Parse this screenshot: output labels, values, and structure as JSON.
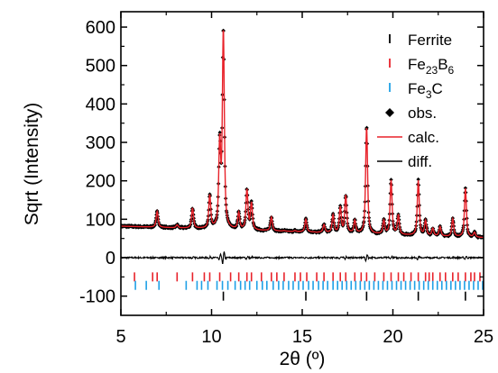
{
  "chart_data": {
    "type": "line",
    "xlabel": "2θ (º)",
    "ylabel": "Sqrt (Intensity)",
    "xlim": [
      5,
      25
    ],
    "ylim": [
      -150,
      640
    ],
    "x_ticks": [
      5,
      10,
      15,
      20,
      25
    ],
    "y_ticks": [
      -100,
      0,
      100,
      200,
      300,
      400,
      500,
      600
    ],
    "x_tick_labels": [
      "5",
      "10",
      "15",
      "20",
      "25"
    ],
    "y_tick_labels": [
      "-100",
      "0",
      "100",
      "200",
      "300",
      "400",
      "500",
      "600"
    ],
    "grid": false,
    "legend_position": "top-right",
    "background": 82,
    "background_end": 52,
    "peaks": [
      {
        "x": 7.0,
        "y": 120
      },
      {
        "x": 8.1,
        "y": 85
      },
      {
        "x": 8.95,
        "y": 128
      },
      {
        "x": 9.9,
        "y": 160
      },
      {
        "x": 10.45,
        "y": 290
      },
      {
        "x": 10.65,
        "y": 585
      },
      {
        "x": 11.5,
        "y": 115
      },
      {
        "x": 11.95,
        "y": 175
      },
      {
        "x": 12.2,
        "y": 140
      },
      {
        "x": 13.3,
        "y": 105
      },
      {
        "x": 14.0,
        "y": 70
      },
      {
        "x": 14.6,
        "y": 70
      },
      {
        "x": 15.2,
        "y": 100
      },
      {
        "x": 15.8,
        "y": 65
      },
      {
        "x": 16.2,
        "y": 85
      },
      {
        "x": 16.7,
        "y": 110
      },
      {
        "x": 17.1,
        "y": 130
      },
      {
        "x": 17.4,
        "y": 160
      },
      {
        "x": 17.9,
        "y": 95
      },
      {
        "x": 18.55,
        "y": 340
      },
      {
        "x": 19.5,
        "y": 95
      },
      {
        "x": 19.9,
        "y": 200
      },
      {
        "x": 20.3,
        "y": 110
      },
      {
        "x": 21.4,
        "y": 200
      },
      {
        "x": 21.8,
        "y": 95
      },
      {
        "x": 22.2,
        "y": 75
      },
      {
        "x": 22.6,
        "y": 80
      },
      {
        "x": 23.3,
        "y": 100
      },
      {
        "x": 24.0,
        "y": 180
      },
      {
        "x": 24.5,
        "y": 65
      }
    ],
    "reflections": {
      "ferrite": {
        "y": -100,
        "color": "#000000",
        "x": [
          10.65,
          15.2,
          18.55,
          21.4,
          24.0
        ]
      },
      "fe23b6": {
        "y": -50,
        "color": "#e8222a",
        "x": [
          5.75,
          6.75,
          7.0,
          8.1,
          8.95,
          9.6,
          9.9,
          10.45,
          11.05,
          11.5,
          11.95,
          12.2,
          12.75,
          13.3,
          13.6,
          14.0,
          14.6,
          14.9,
          15.25,
          15.8,
          16.2,
          16.7,
          17.1,
          17.4,
          17.9,
          18.25,
          18.55,
          19.0,
          19.5,
          19.9,
          20.3,
          20.6,
          21.0,
          21.4,
          21.8,
          22.0,
          22.2,
          22.6,
          22.9,
          23.3,
          23.6,
          24.0,
          24.3,
          24.5,
          24.8
        ]
      },
      "fe3c": {
        "y": -72,
        "color": "#1ea0e6",
        "x": [
          5.8,
          6.4,
          7.1,
          8.6,
          9.2,
          9.45,
          9.8,
          10.3,
          10.6,
          10.9,
          11.3,
          11.6,
          11.85,
          12.1,
          12.5,
          12.8,
          13.05,
          13.4,
          13.7,
          13.95,
          14.25,
          14.5,
          14.8,
          15.05,
          15.35,
          15.6,
          15.9,
          16.15,
          16.4,
          16.7,
          16.95,
          17.2,
          17.45,
          17.7,
          17.95,
          18.2,
          18.45,
          18.7,
          18.95,
          19.2,
          19.45,
          19.7,
          19.95,
          20.2,
          20.45,
          20.7,
          20.95,
          21.2,
          21.45,
          21.7,
          21.95,
          22.2,
          22.45,
          22.7,
          22.95,
          23.2,
          23.45,
          23.7,
          23.95,
          24.2,
          24.45,
          24.7,
          24.95
        ]
      }
    },
    "series": [
      {
        "name": "obs.",
        "marker": "diamond",
        "color": "#000000"
      },
      {
        "name": "calc.",
        "style": "line",
        "color": "#e8222a"
      },
      {
        "name": "diff.",
        "style": "line",
        "color": "#000000"
      }
    ],
    "legend": [
      {
        "key": "ferrite",
        "label": "Ferrite",
        "sub": "",
        "tail": "",
        "color": "#000000",
        "kind": "tick"
      },
      {
        "key": "fe23b6",
        "label": "Fe",
        "sub": "23",
        "tail": "B",
        "sub2": "6",
        "color": "#e8222a",
        "kind": "tick"
      },
      {
        "key": "fe3c",
        "label": "Fe",
        "sub": "3",
        "tail": "C",
        "sub2": "",
        "color": "#1ea0e6",
        "kind": "tick"
      },
      {
        "key": "obs",
        "label": "obs.",
        "sub": "",
        "tail": "",
        "color": "#000000",
        "kind": "diamond"
      },
      {
        "key": "calc",
        "label": "calc.",
        "sub": "",
        "tail": "",
        "color": "#e8222a",
        "kind": "line"
      },
      {
        "key": "diff",
        "label": "diff.",
        "sub": "",
        "tail": "",
        "color": "#000000",
        "kind": "line"
      }
    ]
  }
}
